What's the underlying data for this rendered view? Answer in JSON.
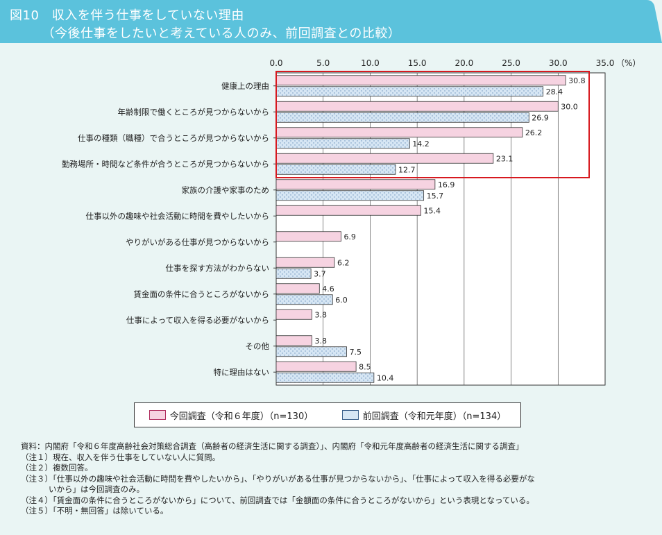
{
  "header": {
    "line1": "図10　収入を伴う仕事をしていない理由",
    "line2": "　　　（今後仕事をしたいと考えている人のみ、前回調査との比較）",
    "color": "#5bc2dc"
  },
  "chart_data": {
    "type": "bar",
    "orientation": "horizontal",
    "xlim": [
      0,
      35
    ],
    "xticks": [
      "0.0",
      "5.0",
      "10.0",
      "15.0",
      "20.0",
      "25.0",
      "30.0",
      "35.0"
    ],
    "xunit": "（%）",
    "categories": [
      "健康上の理由",
      "年齢制限で働くところが見つからないから",
      "仕事の種類（職種）で合うところが見つからないから",
      "勤務場所・時間など条件が合うところが見つからないから",
      "家族の介護や家事のため",
      "仕事以外の趣味や社会活動に時間を費やしたいから",
      "やりがいがある仕事が見つからないから",
      "仕事を探す方法がわからない",
      "賃金面の条件に合うところがないから",
      "仕事によって収入を得る必要がないから",
      "その他",
      "特に理由はない"
    ],
    "series": [
      {
        "name": "今回調査（令和６年度）（n=130）",
        "values": [
          30.8,
          30.0,
          26.2,
          23.1,
          16.9,
          15.4,
          6.9,
          6.2,
          4.6,
          3.8,
          3.8,
          8.5
        ],
        "color": "#f6d3e1"
      },
      {
        "name": "前回調査（令和元年度）（n=134）",
        "values": [
          28.4,
          26.9,
          14.2,
          12.7,
          15.7,
          null,
          null,
          3.7,
          6.0,
          null,
          7.5,
          10.4
        ],
        "color": "#d6e6f4"
      }
    ],
    "highlight": {
      "categories": 4,
      "color": "#d7191f"
    },
    "grid": "vertical"
  },
  "notes": [
    "資料：内閣府「令和６年度高齢社会対策総合調査（高齢者の経済生活に関する調査）」、内閣府「令和元年度高齢者の経済生活に関する調査」",
    "（注１）現在、収入を伴う仕事をしていない人に質問。",
    "（注２）複数回答。",
    "（注３）「仕事以外の趣味や社会活動に時間を費やしたいから」、「やりがいがある仕事が見つからないから」、「仕事によって収入を得る必要がな",
    "いから」は今回調査のみ。",
    "（注４）「賃金面の条件に合うところがないから」について、前回調査では「金額面の条件に合うところがないから」という表現となっている。",
    "（注５）「不明・無回答」は除いている。"
  ]
}
